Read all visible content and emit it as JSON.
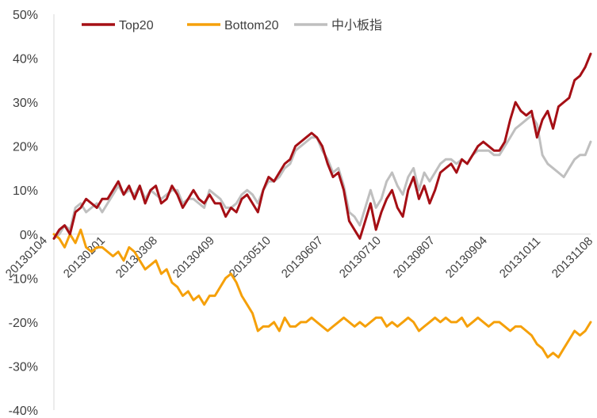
{
  "chart_data": {
    "type": "line",
    "title": "",
    "xlabel": "",
    "ylabel": "",
    "ylim": [
      -40,
      50
    ],
    "y_ticks": [
      "50%",
      "40%",
      "30%",
      "20%",
      "10%",
      "0%",
      "-10%",
      "-20%",
      "-30%",
      "-40%"
    ],
    "x_tick_labels": [
      "20130104",
      "20130201",
      "20130308",
      "20130409",
      "20130510",
      "20130607",
      "20130710",
      "20130807",
      "20130904",
      "20131011",
      "20131108"
    ],
    "grid": false,
    "legend_position": "top-left",
    "series": [
      {
        "name": "Top20",
        "color": "#A50F15",
        "values": [
          -1,
          1,
          2,
          0,
          5,
          6,
          8,
          7,
          6,
          8,
          8,
          10,
          12,
          9,
          11,
          8,
          11,
          7,
          10,
          11,
          7,
          8,
          11,
          9,
          6,
          8,
          10,
          8,
          7,
          9,
          7,
          7,
          4,
          6,
          5,
          8,
          9,
          7,
          5,
          10,
          13,
          12,
          14,
          16,
          17,
          20,
          21,
          22,
          23,
          22,
          20,
          16,
          13,
          14,
          10,
          3,
          1,
          -1,
          3,
          7,
          1,
          5,
          8,
          10,
          6,
          4,
          10,
          13,
          8,
          11,
          7,
          10,
          14,
          15,
          16,
          14,
          17,
          16,
          18,
          20,
          21,
          20,
          19,
          19,
          21,
          26,
          30,
          28,
          27,
          28,
          22,
          26,
          28,
          24,
          29,
          30,
          31,
          35,
          36,
          38,
          41
        ]
      },
      {
        "name": "Bottom20",
        "color": "#F5A00A",
        "values": [
          0,
          -1,
          -3,
          0,
          -2,
          1,
          -3,
          -4,
          -3,
          -3,
          -4,
          -5,
          -4,
          -6,
          -3,
          -4,
          -6,
          -8,
          -7,
          -6,
          -9,
          -8,
          -11,
          -12,
          -14,
          -13,
          -15,
          -14,
          -16,
          -14,
          -14,
          -12,
          -10,
          -9,
          -11,
          -14,
          -16,
          -18,
          -22,
          -21,
          -21,
          -20,
          -22,
          -19,
          -21,
          -21,
          -20,
          -20,
          -19,
          -20,
          -21,
          -22,
          -21,
          -20,
          -19,
          -20,
          -21,
          -20,
          -21,
          -20,
          -19,
          -19,
          -21,
          -20,
          -21,
          -20,
          -19,
          -20,
          -22,
          -21,
          -20,
          -19,
          -20,
          -19,
          -20,
          -20,
          -19,
          -21,
          -20,
          -19,
          -20,
          -21,
          -20,
          -20,
          -21,
          -22,
          -21,
          -21,
          -22,
          -23,
          -25,
          -26,
          -28,
          -27,
          -28,
          -26,
          -24,
          -22,
          -23,
          -22,
          -20
        ]
      },
      {
        "name": "中小板指",
        "color": "#BFBFBF",
        "values": [
          -1,
          0,
          2,
          1,
          6,
          7,
          5,
          6,
          7,
          5,
          7,
          9,
          11,
          9,
          10,
          9,
          11,
          8,
          10,
          9,
          8,
          9,
          10,
          10,
          7,
          8,
          8,
          7,
          6,
          10,
          9,
          8,
          6,
          6,
          7,
          9,
          10,
          9,
          7,
          10,
          12,
          12,
          13,
          15,
          16,
          19,
          20,
          21,
          22,
          22,
          19,
          17,
          14,
          15,
          11,
          5,
          4,
          2,
          6,
          10,
          6,
          8,
          12,
          14,
          11,
          9,
          13,
          15,
          10,
          14,
          12,
          14,
          16,
          17,
          17,
          16,
          17,
          16,
          18,
          19,
          19,
          19,
          18,
          18,
          20,
          22,
          24,
          25,
          26,
          27,
          25,
          18,
          16,
          15,
          14,
          13,
          15,
          17,
          18,
          18,
          21
        ]
      }
    ]
  }
}
